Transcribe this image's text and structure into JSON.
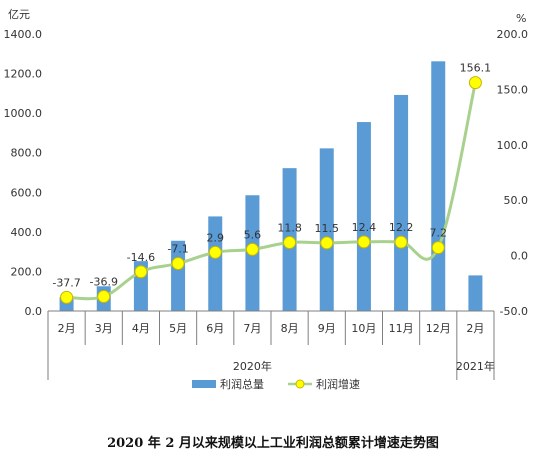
{
  "caption": "2020 年 2 月以来规模以上工业利润总额累计增速走势图",
  "chart_data": {
    "type": "bar",
    "categories": [
      "2月",
      "3月",
      "4月",
      "5月",
      "6月",
      "7月",
      "8月",
      "9月",
      "10月",
      "11月",
      "12月",
      "2月"
    ],
    "year_groups": [
      {
        "label": "2020年",
        "start": 0,
        "end": 10
      },
      {
        "label": "2021年",
        "start": 11,
        "end": 11
      }
    ],
    "series": [
      {
        "name": "利润总量",
        "type": "bar",
        "axis": "left",
        "values": [
          70,
          125,
          252,
          355,
          478,
          585,
          722,
          822,
          955,
          1092,
          1262,
          180
        ],
        "color": "#5B9BD5"
      },
      {
        "name": "利润增速",
        "type": "line",
        "axis": "right",
        "values": [
          -37.7,
          -36.9,
          -14.6,
          -7.1,
          2.9,
          5.6,
          11.8,
          11.5,
          12.4,
          12.2,
          7.2,
          156.1
        ],
        "labels": [
          "-37.7",
          "-36.9",
          "-14.6",
          "-7.1",
          "2.9",
          "5.6",
          "11.8",
          "11.5",
          "12.4",
          "12.2",
          "7.2",
          "156.1"
        ],
        "line_color": "#A9D18E",
        "marker_color": "#FFFF00",
        "marker_edge": "#C8B400"
      }
    ],
    "left_axis": {
      "unit": "亿元",
      "min": 0,
      "max": 1400,
      "step": 200,
      "ticks": [
        "0.0",
        "200.0",
        "400.0",
        "600.0",
        "800.0",
        "1000.0",
        "1200.0",
        "1400.0"
      ]
    },
    "right_axis": {
      "unit": "%",
      "min": -50,
      "max": 200,
      "step": 50,
      "ticks": [
        "-50.0",
        "0.0",
        "50.0",
        "100.0",
        "150.0",
        "200.0"
      ]
    },
    "legend_position": "bottom",
    "grid": false
  }
}
